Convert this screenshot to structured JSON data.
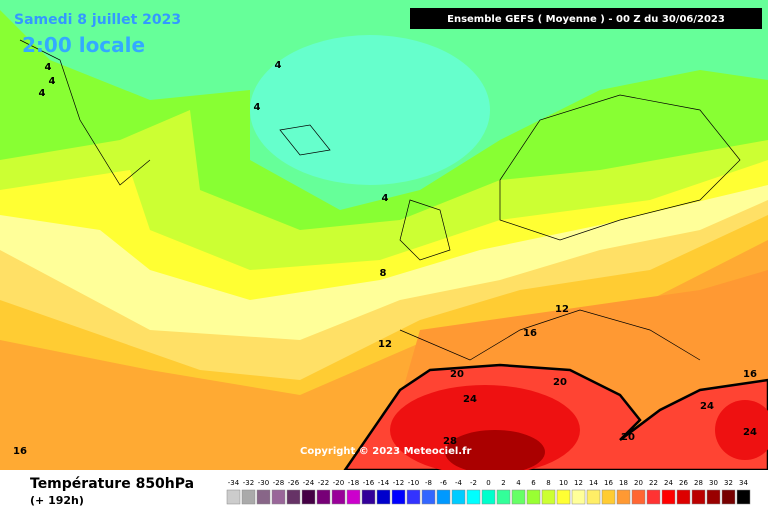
{
  "header": {
    "date": "Samedi 8 juillet 2023",
    "time": "2:00 locale",
    "model": "Ensemble GEFS  ( Moyenne )  - 00 Z du 30/06/2023"
  },
  "copyright": "Copyright © 2023 Meteociel.fr",
  "footer": {
    "title": "Température 850hPa",
    "step": "(+ 192h)"
  },
  "contour_labels": [
    "4",
    "4",
    "4",
    "4",
    "4",
    "4",
    "8",
    "12",
    "12",
    "16",
    "16",
    "20",
    "20",
    "20",
    "24",
    "24",
    "24",
    "28",
    "16"
  ],
  "scale": [
    {
      "value": -34,
      "color": "#cccccc"
    },
    {
      "value": -32,
      "color": "#aaaaaa"
    },
    {
      "value": -30,
      "color": "#886688"
    },
    {
      "value": -28,
      "color": "#996699"
    },
    {
      "value": -26,
      "color": "#663366"
    },
    {
      "value": -24,
      "color": "#440044"
    },
    {
      "value": -22,
      "color": "#770077"
    },
    {
      "value": -20,
      "color": "#990099"
    },
    {
      "value": -18,
      "color": "#cc00cc"
    },
    {
      "value": -16,
      "color": "#330099"
    },
    {
      "value": -14,
      "color": "#0000cc"
    },
    {
      "value": -12,
      "color": "#0000ff"
    },
    {
      "value": -10,
      "color": "#3333ff"
    },
    {
      "value": -8,
      "color": "#3366ff"
    },
    {
      "value": -6,
      "color": "#0099ff"
    },
    {
      "value": -4,
      "color": "#00ccff"
    },
    {
      "value": -2,
      "color": "#00ffff"
    },
    {
      "value": 0,
      "color": "#00ffcc"
    },
    {
      "value": 2,
      "color": "#33ff99"
    },
    {
      "value": 4,
      "color": "#66ff66"
    },
    {
      "value": 6,
      "color": "#99ff33"
    },
    {
      "value": 8,
      "color": "#ccff33"
    },
    {
      "value": 10,
      "color": "#ffff33"
    },
    {
      "value": 12,
      "color": "#ffff99"
    },
    {
      "value": 14,
      "color": "#ffee66"
    },
    {
      "value": 16,
      "color": "#ffcc33"
    },
    {
      "value": 18,
      "color": "#ff9933"
    },
    {
      "value": 20,
      "color": "#ff6633"
    },
    {
      "value": 22,
      "color": "#ff3333"
    },
    {
      "value": 24,
      "color": "#ff0000"
    },
    {
      "value": 26,
      "color": "#dd0000"
    },
    {
      "value": 28,
      "color": "#bb0000"
    },
    {
      "value": 30,
      "color": "#990000"
    },
    {
      "value": 32,
      "color": "#770000"
    },
    {
      "value": 34,
      "color": "#000000"
    }
  ]
}
